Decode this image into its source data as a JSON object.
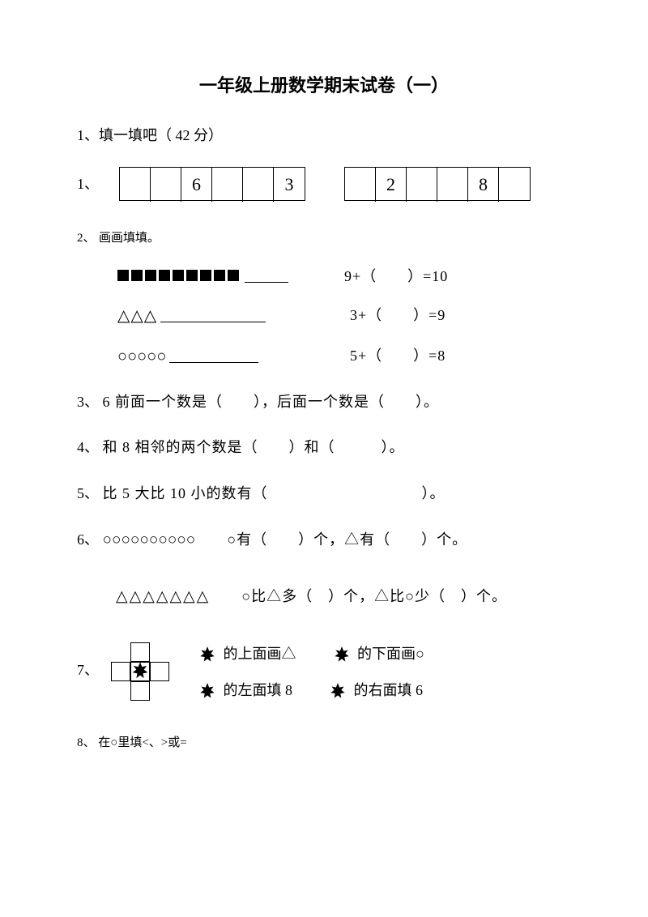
{
  "title": "一年级上册数学期末试卷（一）",
  "section1": {
    "header": "1、填一填吧（ 42 分）",
    "q1": {
      "num": "1、",
      "grid1_cells": [
        "",
        "",
        "6",
        "",
        "",
        "3"
      ],
      "grid2_cells": [
        "",
        "2",
        "",
        "",
        "8",
        ""
      ]
    },
    "q2": {
      "num": "2、",
      "label": "画画填填。",
      "rows": [
        {
          "squares_count": 9,
          "blank_width": 54,
          "eq": "9+（　　）=10"
        },
        {
          "triangles": "△△△",
          "blank_width": 130,
          "eq": "3+（　　）=9"
        },
        {
          "circles": "○○○○○",
          "blank_width": 110,
          "eq": "5+（　　）=8"
        }
      ]
    },
    "q3": {
      "num": "3、",
      "text": "  6 前面一个数是（　　），后面一个数是（　　）。"
    },
    "q4": {
      "num": "4、",
      "text": "  和 8 相邻的两个数是（　　）和（　　　）。"
    },
    "q5": {
      "num": "5、",
      "text": "  比 5 大比 10 小的数有（　　　　　　　　　　）。"
    },
    "q6": {
      "num": "6、",
      "line1_shapes": "○○○○○○○○○○",
      "line1_text": "○有（　　）个，△有（　　）个。",
      "line2_shapes": "△△△△△△△",
      "line2_text": "○比△多（　）个，△比○少（　）个。"
    },
    "q7": {
      "num": "7、",
      "row1a": "的上面画△",
      "row1b": "的下面画○",
      "row2a": "的左面填 8",
      "row2b": "的右面填 6"
    },
    "q8": {
      "num": "8、",
      "text": "在○里填<、>或="
    }
  }
}
